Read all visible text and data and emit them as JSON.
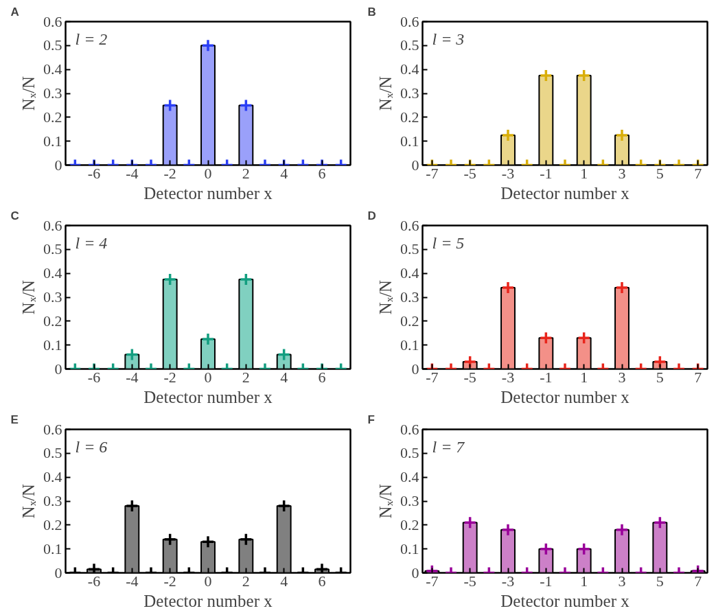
{
  "chart_data": [
    {
      "type": "bar",
      "annotations": [
        "A",
        "l = 2"
      ],
      "xlabel": "Detector number x",
      "ylabel": "Nₓ/N",
      "x": [
        -7,
        -6,
        -5,
        -4,
        -3,
        -2,
        -1,
        0,
        1,
        2,
        3,
        4,
        5,
        6,
        7
      ],
      "xlim": [
        -7.5,
        7.5
      ],
      "xticks": [
        -6,
        -4,
        -2,
        0,
        2,
        4,
        6
      ],
      "ylim": [
        0,
        0.6
      ],
      "yticks": [
        0,
        0.1,
        0.2,
        0.3,
        0.4,
        0.5,
        0.6
      ],
      "grid": false,
      "series": [
        {
          "color": "#9aa0fa",
          "values": [
            null,
            null,
            null,
            null,
            null,
            0.25,
            null,
            0.5,
            null,
            0.25,
            null,
            null,
            null,
            null,
            null
          ]
        },
        {
          "type": "scatter",
          "marker": "cross",
          "color": "#2a3ef5",
          "values": [
            0,
            0,
            0,
            0,
            0,
            0.25,
            0,
            0.5,
            0,
            0.25,
            0,
            0,
            0,
            0,
            0
          ]
        }
      ]
    },
    {
      "type": "bar",
      "annotations": [
        "B",
        "l = 3"
      ],
      "xlabel": "Detector number x",
      "ylabel": "Nₓ/N",
      "x": [
        -7,
        -6,
        -5,
        -4,
        -3,
        -2,
        -1,
        0,
        1,
        2,
        3,
        4,
        5,
        6,
        7
      ],
      "xlim": [
        -7.5,
        7.5
      ],
      "xticks": [
        -7,
        -5,
        -3,
        -1,
        1,
        3,
        5,
        7
      ],
      "ylim": [
        0,
        0.6
      ],
      "yticks": [
        0,
        0.1,
        0.2,
        0.3,
        0.4,
        0.5,
        0.6
      ],
      "grid": false,
      "series": [
        {
          "color": "#ead68a",
          "values": [
            null,
            null,
            null,
            null,
            0.125,
            null,
            0.375,
            null,
            0.375,
            null,
            0.125,
            null,
            null,
            null,
            null
          ]
        },
        {
          "type": "scatter",
          "marker": "cross",
          "color": "#d9ae0a",
          "values": [
            0,
            0,
            0,
            0,
            0.125,
            0,
            0.375,
            0,
            0.375,
            0,
            0.125,
            0,
            0,
            0,
            0
          ]
        }
      ]
    },
    {
      "type": "bar",
      "annotations": [
        "C",
        "l = 4"
      ],
      "xlabel": "Detector number x",
      "ylabel": "Nₓ/N",
      "x": [
        -7,
        -6,
        -5,
        -4,
        -3,
        -2,
        -1,
        0,
        1,
        2,
        3,
        4,
        5,
        6,
        7
      ],
      "xlim": [
        -7.5,
        7.5
      ],
      "xticks": [
        -6,
        -4,
        -2,
        0,
        2,
        4,
        6
      ],
      "ylim": [
        0,
        0.6
      ],
      "yticks": [
        0,
        0.1,
        0.2,
        0.3,
        0.4,
        0.5,
        0.6
      ],
      "grid": false,
      "series": [
        {
          "color": "#80d0c0",
          "values": [
            null,
            null,
            null,
            0.06,
            null,
            0.375,
            null,
            0.125,
            null,
            0.375,
            null,
            0.06,
            null,
            null,
            null
          ]
        },
        {
          "type": "scatter",
          "marker": "cross",
          "color": "#139e80",
          "values": [
            0,
            0,
            0,
            0.06,
            0,
            0.375,
            0,
            0.125,
            0,
            0.375,
            0,
            0.06,
            0,
            0,
            0
          ]
        }
      ]
    },
    {
      "type": "bar",
      "annotations": [
        "D",
        "l = 5"
      ],
      "xlabel": "Detector number x",
      "ylabel": "Nₓ/N",
      "x": [
        -7,
        -6,
        -5,
        -4,
        -3,
        -2,
        -1,
        0,
        1,
        2,
        3,
        4,
        5,
        6,
        7
      ],
      "xlim": [
        -7.5,
        7.5
      ],
      "xticks": [
        -7,
        -5,
        -3,
        -1,
        1,
        3,
        5,
        7
      ],
      "ylim": [
        0,
        0.6
      ],
      "yticks": [
        0,
        0.1,
        0.2,
        0.3,
        0.4,
        0.5,
        0.6
      ],
      "grid": false,
      "series": [
        {
          "color": "#f39088",
          "values": [
            null,
            null,
            0.03,
            null,
            0.34,
            null,
            0.13,
            null,
            0.13,
            null,
            0.34,
            null,
            0.03,
            null,
            null
          ]
        },
        {
          "type": "scatter",
          "marker": "cross",
          "color": "#e8251c",
          "values": [
            0,
            0,
            0.03,
            0,
            0.34,
            0,
            0.13,
            0,
            0.13,
            0,
            0.34,
            0,
            0.03,
            0,
            0
          ]
        }
      ]
    },
    {
      "type": "bar",
      "annotations": [
        "E",
        "l = 6"
      ],
      "xlabel": "Detector number x",
      "ylabel": "Nₓ/N",
      "x": [
        -7,
        -6,
        -5,
        -4,
        -3,
        -2,
        -1,
        0,
        1,
        2,
        3,
        4,
        5,
        6,
        7
      ],
      "xlim": [
        -7.5,
        7.5
      ],
      "xticks": [
        -6,
        -4,
        -2,
        0,
        2,
        4,
        6
      ],
      "ylim": [
        0,
        0.6
      ],
      "yticks": [
        0,
        0.1,
        0.2,
        0.3,
        0.4,
        0.5,
        0.6
      ],
      "grid": false,
      "series": [
        {
          "color": "#808080",
          "values": [
            null,
            0.015,
            null,
            0.28,
            null,
            0.14,
            null,
            0.13,
            null,
            0.14,
            null,
            0.28,
            null,
            0.015,
            null
          ]
        },
        {
          "type": "scatter",
          "marker": "cross",
          "color": "#000000",
          "values": [
            0,
            0.015,
            0,
            0.28,
            0,
            0.14,
            0,
            0.13,
            0,
            0.14,
            0,
            0.28,
            0,
            0.015,
            0
          ]
        }
      ]
    },
    {
      "type": "bar",
      "annotations": [
        "F",
        "l = 7"
      ],
      "xlabel": "Detector number x",
      "ylabel": "Nₓ/N",
      "x": [
        -7,
        -6,
        -5,
        -4,
        -3,
        -2,
        -1,
        0,
        1,
        2,
        3,
        4,
        5,
        6,
        7
      ],
      "xlim": [
        -7.5,
        7.5
      ],
      "xticks": [
        -7,
        -5,
        -3,
        -1,
        1,
        3,
        5,
        7
      ],
      "ylim": [
        0,
        0.6
      ],
      "yticks": [
        0,
        0.1,
        0.2,
        0.3,
        0.4,
        0.5,
        0.6
      ],
      "grid": false,
      "series": [
        {
          "color": "#cc80c8",
          "values": [
            0.008,
            null,
            0.21,
            null,
            0.18,
            null,
            0.1,
            null,
            0.1,
            null,
            0.18,
            null,
            0.21,
            null,
            0.008
          ]
        },
        {
          "type": "scatter",
          "marker": "cross",
          "color": "#990099",
          "values": [
            0.008,
            0,
            0.21,
            0,
            0.18,
            0,
            0.1,
            0,
            0.1,
            0,
            0.18,
            0,
            0.21,
            0,
            0.008
          ]
        }
      ]
    }
  ]
}
